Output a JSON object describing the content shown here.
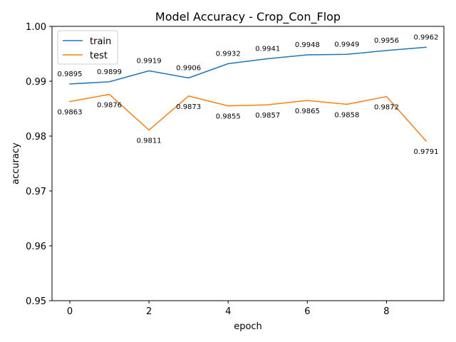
{
  "chart_data": {
    "type": "line",
    "title": "Model Accuracy - Crop_Con_Flop",
    "xlabel": "epoch",
    "ylabel": "accuracy",
    "x": [
      0,
      1,
      2,
      3,
      4,
      5,
      6,
      7,
      8,
      9
    ],
    "xlim": [
      -0.45,
      9.45
    ],
    "ylim": [
      0.95,
      1.0
    ],
    "xticks": [
      0,
      2,
      4,
      6,
      8
    ],
    "yticks": [
      0.95,
      0.96,
      0.97,
      0.98,
      0.99,
      1.0
    ],
    "xtick_labels": [
      "0",
      "2",
      "4",
      "6",
      "8"
    ],
    "ytick_labels": [
      "0.95",
      "0.96",
      "0.97",
      "0.98",
      "0.99",
      "1.00"
    ],
    "grid": false,
    "legend_position": "top-left",
    "series": [
      {
        "name": "train",
        "color": "#1f77b4",
        "values": [
          0.9895,
          0.9899,
          0.9919,
          0.9906,
          0.9932,
          0.9941,
          0.9948,
          0.9949,
          0.9956,
          0.9962
        ],
        "labels": [
          "0.9895",
          "0.9899",
          "0.9919",
          "0.9906",
          "0.9932",
          "0.9941",
          "0.9948",
          "0.9949",
          "0.9956",
          "0.9962"
        ],
        "label_position": "above"
      },
      {
        "name": "test",
        "color": "#ff7f0e",
        "values": [
          0.9863,
          0.9876,
          0.9811,
          0.9873,
          0.9855,
          0.9857,
          0.9865,
          0.9858,
          0.9872,
          0.9791
        ],
        "labels": [
          "0.9863",
          "0.9876",
          "0.9811",
          "0.9873",
          "0.9855",
          "0.9857",
          "0.9865",
          "0.9858",
          "0.9872",
          "0.9791"
        ],
        "label_position": "below"
      }
    ]
  }
}
